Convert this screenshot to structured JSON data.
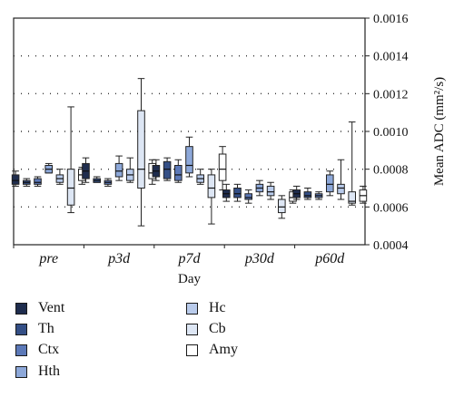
{
  "chart_data": {
    "type": "box",
    "xlabel": "Day",
    "ylabel": "Mean ADC (mm²/s)",
    "ylim": [
      0.0004,
      0.0016
    ],
    "y_ticks": [
      "0.0004",
      "0.0006",
      "0.0008",
      "0.0010",
      "0.0012",
      "0.0014",
      "0.0016"
    ],
    "y_axis_side": "right",
    "grid": "dotted horizontal",
    "legend_position": "bottom",
    "groups": [
      "pre",
      "p3d",
      "p7d",
      "p30d",
      "p60d"
    ],
    "series": [
      {
        "name": "Vent",
        "color": "#1f2d4e",
        "boxes": [
          {
            "min": 0.00071,
            "q1": 0.00072,
            "median": 0.00074,
            "q3": 0.00077,
            "max": 0.00079
          },
          {
            "min": 0.00073,
            "q1": 0.00075,
            "median": 0.00079,
            "q3": 0.00083,
            "max": 0.00086
          },
          {
            "min": 0.00074,
            "q1": 0.00076,
            "median": 0.00079,
            "q3": 0.00082,
            "max": 0.00085
          },
          {
            "min": 0.00063,
            "q1": 0.00065,
            "median": 0.00067,
            "q3": 0.00069,
            "max": 0.00072
          },
          {
            "min": 0.00064,
            "q1": 0.00065,
            "median": 0.00067,
            "q3": 0.00069,
            "max": 0.00071
          }
        ]
      },
      {
        "name": "Th",
        "color": "#344f86",
        "boxes": [
          {
            "min": 0.00071,
            "q1": 0.00072,
            "median": 0.00073,
            "q3": 0.00074,
            "max": 0.00075
          },
          {
            "min": 0.00073,
            "q1": 0.00073,
            "median": 0.00074,
            "q3": 0.00075,
            "max": 0.00076
          },
          {
            "min": 0.00074,
            "q1": 0.00075,
            "median": 0.0008,
            "q3": 0.00084,
            "max": 0.00086
          },
          {
            "min": 0.00063,
            "q1": 0.00065,
            "median": 0.00067,
            "q3": 0.0007,
            "max": 0.00072
          },
          {
            "min": 0.00064,
            "q1": 0.00065,
            "median": 0.00066,
            "q3": 0.00068,
            "max": 0.0007
          }
        ]
      },
      {
        "name": "Ctx",
        "color": "#5c79b8",
        "boxes": [
          {
            "min": 0.00071,
            "q1": 0.00072,
            "median": 0.00073,
            "q3": 0.00075,
            "max": 0.00076
          },
          {
            "min": 0.00071,
            "q1": 0.00072,
            "median": 0.00073,
            "q3": 0.00074,
            "max": 0.00075
          },
          {
            "min": 0.00073,
            "q1": 0.00074,
            "median": 0.00077,
            "q3": 0.00082,
            "max": 0.00085
          },
          {
            "min": 0.00062,
            "q1": 0.00064,
            "median": 0.00065,
            "q3": 0.00067,
            "max": 0.00069
          },
          {
            "min": 0.00064,
            "q1": 0.00065,
            "median": 0.00066,
            "q3": 0.00067,
            "max": 0.00068
          }
        ]
      },
      {
        "name": "Hth",
        "color": "#8da8d9",
        "boxes": [
          {
            "min": 0.00078,
            "q1": 0.00078,
            "median": 0.0008,
            "q3": 0.00082,
            "max": 0.00083
          },
          {
            "min": 0.00074,
            "q1": 0.00076,
            "median": 0.00079,
            "q3": 0.00083,
            "max": 0.00087
          },
          {
            "min": 0.00076,
            "q1": 0.00078,
            "median": 0.00082,
            "q3": 0.00092,
            "max": 0.00097
          },
          {
            "min": 0.00066,
            "q1": 0.00068,
            "median": 0.0007,
            "q3": 0.00072,
            "max": 0.00074
          },
          {
            "min": 0.00066,
            "q1": 0.00068,
            "median": 0.00072,
            "q3": 0.00077,
            "max": 0.00079
          }
        ]
      },
      {
        "name": "Hc",
        "color": "#b9cbeb",
        "boxes": [
          {
            "min": 0.00072,
            "q1": 0.00073,
            "median": 0.00075,
            "q3": 0.00077,
            "max": 0.0008
          },
          {
            "min": 0.00073,
            "q1": 0.00074,
            "median": 0.00077,
            "q3": 0.0008,
            "max": 0.00086
          },
          {
            "min": 0.00072,
            "q1": 0.00073,
            "median": 0.00075,
            "q3": 0.00077,
            "max": 0.0008
          },
          {
            "min": 0.00064,
            "q1": 0.00066,
            "median": 0.00068,
            "q3": 0.00071,
            "max": 0.00073
          },
          {
            "min": 0.00064,
            "q1": 0.00067,
            "median": 0.0007,
            "q3": 0.00072,
            "max": 0.00085
          }
        ]
      },
      {
        "name": "Cb",
        "color": "#dde6f4",
        "boxes": [
          {
            "min": 0.00057,
            "q1": 0.00061,
            "median": 0.0007,
            "q3": 0.0008,
            "max": 0.00113
          },
          {
            "min": 0.0005,
            "q1": 0.0007,
            "median": 0.0008,
            "q3": 0.00111,
            "max": 0.00128
          },
          {
            "min": 0.00051,
            "q1": 0.00065,
            "median": 0.0007,
            "q3": 0.00077,
            "max": 0.0008
          },
          {
            "min": 0.00054,
            "q1": 0.00057,
            "median": 0.0006,
            "q3": 0.00064,
            "max": 0.00066
          },
          {
            "min": 0.00061,
            "q1": 0.00062,
            "median": 0.00063,
            "q3": 0.00068,
            "max": 0.00105
          }
        ]
      },
      {
        "name": "Amy",
        "color": "#ffffff",
        "boxes": [
          {
            "min": 0.00072,
            "q1": 0.00074,
            "median": 0.00077,
            "q3": 0.0008,
            "max": 0.00081
          },
          {
            "min": 0.00072,
            "q1": 0.00075,
            "median": 0.00078,
            "q3": 0.00083,
            "max": 0.00085
          },
          {
            "min": 0.00069,
            "q1": 0.00074,
            "median": 0.0008,
            "q3": 0.00088,
            "max": 0.00092
          },
          {
            "min": 0.00062,
            "q1": 0.00063,
            "median": 0.00065,
            "q3": 0.00068,
            "max": 0.00069
          },
          {
            "min": 0.00062,
            "q1": 0.00063,
            "median": 0.00066,
            "q3": 0.00069,
            "max": 0.00071
          }
        ]
      }
    ]
  }
}
